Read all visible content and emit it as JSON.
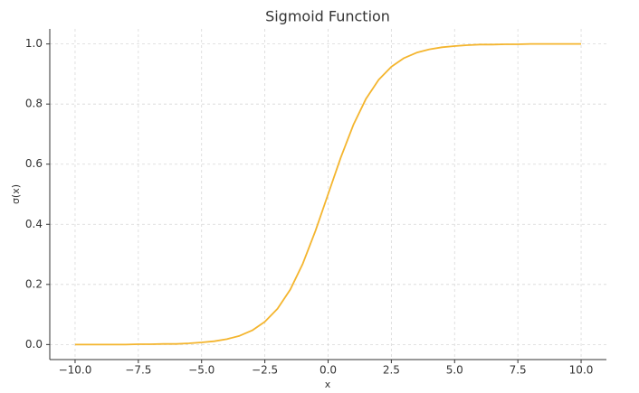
{
  "chart_data": {
    "type": "line",
    "title": "Sigmoid Function",
    "x_label": "x",
    "y_label": "σ(x)",
    "color": "#f4b52e",
    "grid": true,
    "x": [
      -10,
      -9.5,
      -9,
      -8.5,
      -8,
      -7.5,
      -7,
      -6.5,
      -6,
      -5.5,
      -5,
      -4.5,
      -4,
      -3.5,
      -3,
      -2.5,
      -2,
      -1.5,
      -1,
      -0.5,
      0,
      0.5,
      1,
      1.5,
      2,
      2.5,
      3,
      3.5,
      4,
      4.5,
      5,
      5.5,
      6,
      6.5,
      7,
      7.5,
      8,
      8.5,
      9,
      9.5,
      10
    ],
    "values": [
      0.0,
      0.0,
      0.0,
      0.0,
      0.0,
      0.001,
      0.001,
      0.002,
      0.002,
      0.004,
      0.007,
      0.011,
      0.018,
      0.029,
      0.047,
      0.076,
      0.119,
      0.182,
      0.269,
      0.378,
      0.5,
      0.622,
      0.731,
      0.818,
      0.881,
      0.924,
      0.953,
      0.971,
      0.982,
      0.989,
      0.993,
      0.996,
      0.998,
      0.998,
      0.999,
      0.999,
      1.0,
      1.0,
      1.0,
      1.0,
      1.0
    ],
    "xlim": [
      -11,
      11
    ],
    "ylim": [
      -0.05,
      1.05
    ],
    "xticks": [
      {
        "value": -10,
        "label": "−10.0"
      },
      {
        "value": -7.5,
        "label": "−7.5"
      },
      {
        "value": -5,
        "label": "−5.0"
      },
      {
        "value": -2.5,
        "label": "−2.5"
      },
      {
        "value": 0,
        "label": "0.0"
      },
      {
        "value": 2.5,
        "label": "2.5"
      },
      {
        "value": 5,
        "label": "5.0"
      },
      {
        "value": 7.5,
        "label": "7.5"
      },
      {
        "value": 10,
        "label": "10.0"
      }
    ],
    "yticks": [
      {
        "value": 0,
        "label": "0.0"
      },
      0.2,
      0.4,
      0.6,
      0.8,
      {
        "value": 1,
        "label": "1.0"
      }
    ]
  }
}
